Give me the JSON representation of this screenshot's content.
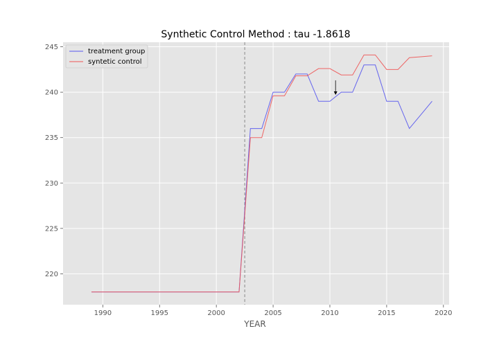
{
  "chart_data": {
    "type": "line",
    "title": "Synthetic Control Method : tau -1.8618",
    "xlabel": "YEAR",
    "ylabel": "",
    "xlim": [
      1986.5,
      2020.5
    ],
    "ylim": [
      216.6,
      245.5
    ],
    "xticks": [
      1990,
      1995,
      2000,
      2005,
      2010,
      2015,
      2020
    ],
    "yticks": [
      220,
      225,
      230,
      235,
      240,
      245
    ],
    "grid": true,
    "legend_position": "top-left",
    "intervention_year": 2002.5,
    "annotation_arrow": {
      "x": 2010.5,
      "y_from": 241.3,
      "y_to": 239.7
    },
    "x": [
      1989,
      1990,
      1991,
      1992,
      1993,
      1994,
      1995,
      1996,
      1997,
      1998,
      1999,
      2000,
      2001,
      2002,
      2003,
      2004,
      2005,
      2006,
      2007,
      2008,
      2009,
      2010,
      2011,
      2012,
      2013,
      2014,
      2015,
      2016,
      2017,
      2018,
      2019
    ],
    "series": [
      {
        "name": "treatment group",
        "color": "#5555ee",
        "values": [
          218,
          218,
          218,
          218,
          218,
          218,
          218,
          218,
          218,
          218,
          218,
          218,
          218,
          218,
          236,
          236,
          240,
          240,
          242,
          242,
          239,
          239,
          240,
          240,
          243,
          243,
          239,
          239,
          236,
          237.5,
          239
        ]
      },
      {
        "name": "syntetic control",
        "color": "#ee5555",
        "values": [
          218,
          218,
          218,
          218,
          218,
          218,
          218,
          218,
          218,
          218,
          218,
          218,
          218,
          218,
          235,
          235,
          239.6,
          239.6,
          241.8,
          241.8,
          242.6,
          242.6,
          241.9,
          241.9,
          244.1,
          244.1,
          242.5,
          242.5,
          243.8,
          243.9,
          244
        ]
      }
    ]
  }
}
